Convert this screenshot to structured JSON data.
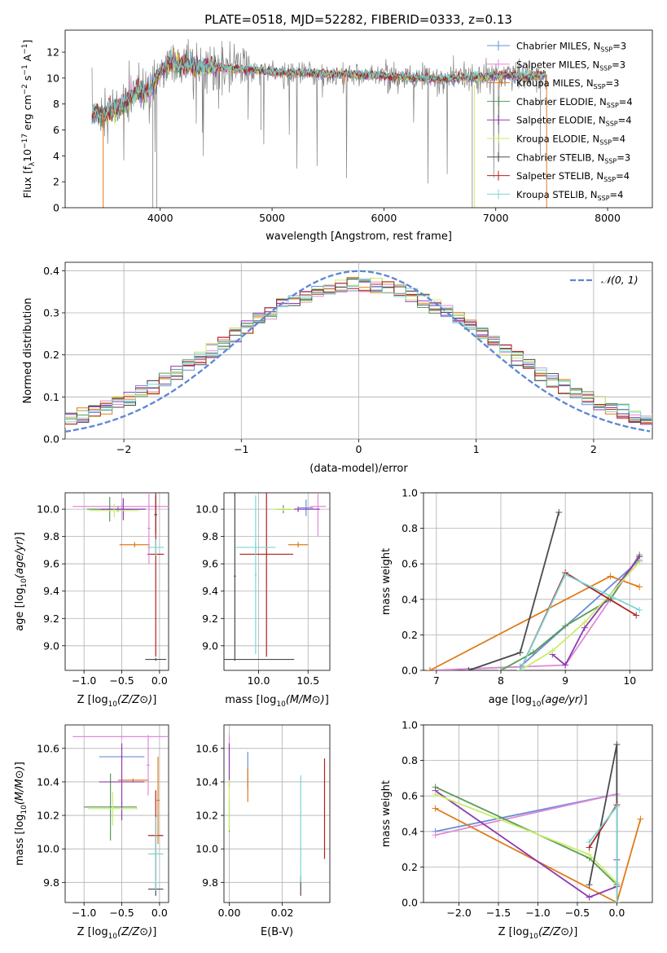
{
  "figure": {
    "title": "PLATE=0518, MJD=52282, FIBERID=0333, z=0.13"
  },
  "colors": {
    "chabrier_miles": "#6a8fd6",
    "salpeter_miles": "#e08ad8",
    "kroupa_miles": "#e07b1a",
    "chabrier_elodie": "#5a9a5a",
    "salpeter_elodie": "#8e3ab0",
    "kroupa_elodie": "#c8ee6a",
    "chabrier_stelib": "#4a4a4a",
    "salpeter_stelib": "#b22020",
    "kroupa_stelib": "#7ad6d6",
    "spectrum_data": "#808080",
    "normal_curve": "#5b86d6"
  },
  "chart_data": [
    {
      "id": "spectrum",
      "type": "line",
      "xlabel": "wavelength [Angstrom, rest frame]",
      "ylabel": "Flux [f_λ10^-17 erg cm^-2 s^-1 A^-1]",
      "xlim": [
        3150,
        8400
      ],
      "ylim": [
        0,
        13.7
      ],
      "xticks": [
        4000,
        5000,
        6000,
        7000,
        8000
      ],
      "yticks": [
        0,
        2,
        4,
        6,
        8,
        10,
        12
      ],
      "grid": false,
      "legend_position": "top-right",
      "legend": [
        {
          "label": "Chabrier MILES, N",
          "sub": "SSP",
          "suffix": "=3",
          "color_key": "chabrier_miles"
        },
        {
          "label": "Salpeter MILES, N",
          "sub": "SSP",
          "suffix": "=3",
          "color_key": "salpeter_miles"
        },
        {
          "label": "Kroupa MILES, N",
          "sub": "SSP",
          "suffix": "=3",
          "color_key": "kroupa_miles"
        },
        {
          "label": "Chabrier ELODIE, N",
          "sub": "SSP",
          "suffix": "=4",
          "color_key": "chabrier_elodie"
        },
        {
          "label": "Salpeter ELODIE, N",
          "sub": "SSP",
          "suffix": "=4",
          "color_key": "salpeter_elodie"
        },
        {
          "label": "Kroupa ELODIE, N",
          "sub": "SSP",
          "suffix": "=4",
          "color_key": "kroupa_elodie"
        },
        {
          "label": "Chabrier STELIB, N",
          "sub": "SSP",
          "suffix": "=3",
          "color_key": "chabrier_stelib"
        },
        {
          "label": "Salpeter STELIB, N",
          "sub": "SSP",
          "suffix": "=4",
          "color_key": "salpeter_stelib"
        },
        {
          "label": "Kroupa STELIB, N",
          "sub": "SSP",
          "suffix": "=4",
          "color_key": "kroupa_stelib"
        }
      ],
      "continuum": [
        [
          3390,
          7.3
        ],
        [
          3500,
          7.2
        ],
        [
          3600,
          7.6
        ],
        [
          3700,
          8.2
        ],
        [
          3800,
          9.0
        ],
        [
          3900,
          8.8
        ],
        [
          4000,
          10.5
        ],
        [
          4100,
          11.2
        ],
        [
          4200,
          11.0
        ],
        [
          4300,
          10.9
        ],
        [
          4500,
          10.8
        ],
        [
          4700,
          10.7
        ],
        [
          4900,
          10.6
        ],
        [
          5100,
          10.4
        ],
        [
          5300,
          10.4
        ],
        [
          5500,
          10.3
        ],
        [
          5700,
          10.3
        ],
        [
          5900,
          10.2
        ],
        [
          6100,
          10.1
        ],
        [
          6300,
          10.0
        ],
        [
          6500,
          9.9
        ],
        [
          6700,
          10.0
        ],
        [
          6900,
          10.1
        ],
        [
          7100,
          10.2
        ],
        [
          7300,
          10.1
        ],
        [
          7450,
          10.3
        ]
      ],
      "model_xrange": [
        3390,
        7450
      ],
      "data_xrange": [
        3390,
        7450
      ]
    },
    {
      "id": "residuals",
      "type": "line",
      "xlabel": "(data-model)/error",
      "ylabel": "Normed distribution",
      "xlim": [
        -2.5,
        2.5
      ],
      "ylim": [
        0,
        0.42
      ],
      "xticks": [
        -2,
        -1,
        0,
        1,
        2
      ],
      "yticks": [
        0.0,
        0.1,
        0.2,
        0.3,
        0.4
      ],
      "grid": true,
      "legend_position": "top-right",
      "normal_label": "𝒩(0, 1)",
      "bin_width": 0.1,
      "series_order": [
        "chabrier_miles",
        "salpeter_miles",
        "kroupa_miles",
        "chabrier_elodie",
        "salpeter_elodie",
        "kroupa_elodie",
        "chabrier_stelib",
        "salpeter_stelib",
        "kroupa_stelib"
      ]
    },
    {
      "id": "age_vs_Z",
      "type": "scatter",
      "xlabel": "Z [log10(Z/Z⊙)]",
      "ylabel": "age [log10(age/yr)]",
      "xlim": [
        -1.25,
        0.12
      ],
      "ylim": [
        8.82,
        10.12
      ],
      "xticks": [
        -1.0,
        -0.5,
        0.0
      ],
      "yticks": [
        9.0,
        9.2,
        9.4,
        9.6,
        9.8,
        10.0
      ],
      "grid": true,
      "points": [
        {
          "key": "chabrier_miles",
          "x": -0.55,
          "y": 10.0,
          "xerr": 0.35,
          "yerr": 0.02
        },
        {
          "key": "salpeter_miles",
          "x": -0.5,
          "y": 10.02,
          "xerr": 0.65,
          "yerr": 0.02
        },
        {
          "key": "kroupa_miles",
          "x": -0.33,
          "y": 9.74,
          "xerr": 0.2,
          "yerr": 0.02
        },
        {
          "key": "chabrier_elodie",
          "x": -0.66,
          "y": 10.0,
          "xerr": 0.3,
          "yerr": 0.09
        },
        {
          "key": "salpeter_elodie",
          "x": -0.48,
          "y": 10.0,
          "xerr": 0.3,
          "yerr": 0.08
        },
        {
          "key": "kroupa_elodie",
          "x": -0.6,
          "y": 9.99,
          "xerr": 0.33,
          "yerr": 0.05
        },
        {
          "key": "chabrier_stelib",
          "x": -0.05,
          "y": 9.96,
          "xerr": 0.02,
          "yerr": 0.14
        },
        {
          "key": "salpeter_stelib",
          "x": -0.05,
          "y": 9.67,
          "xerr": 0.11,
          "yerr": 0.75
        },
        {
          "key": "kroupa_stelib",
          "x": -0.05,
          "y": 9.72,
          "xerr": 0.11,
          "yerr": 0.06
        },
        {
          "key": "salpeter_miles",
          "x": -0.14,
          "y": 9.86,
          "xerr": 0.02,
          "yerr": 0.26
        },
        {
          "key": "chabrier_stelib",
          "x": -0.05,
          "y": 8.9,
          "xerr": 0.14,
          "yerr": 0.01
        }
      ]
    },
    {
      "id": "age_vs_mass",
      "type": "scatter",
      "xlabel": "mass [log10(M/M⊙)]",
      "ylabel": "",
      "xlim": [
        9.65,
        10.72
      ],
      "ylim": [
        8.82,
        10.12
      ],
      "xticks": [
        10.0,
        10.5
      ],
      "yticks": [
        9.0,
        9.2,
        9.4,
        9.6,
        9.8,
        10.0
      ],
      "grid": true,
      "points": [
        {
          "key": "chabrier_miles",
          "x": 10.48,
          "y": 10.01,
          "xerr": 0.07,
          "yerr": 0.06
        },
        {
          "key": "salpeter_miles",
          "x": 10.6,
          "y": 10.02,
          "xerr": 0.08,
          "yerr": 0.22
        },
        {
          "key": "kroupa_miles",
          "x": 10.4,
          "y": 9.74,
          "xerr": 0.1,
          "yerr": 0.02
        },
        {
          "key": "chabrier_elodie",
          "x": 10.25,
          "y": 10.0,
          "xerr": 0.06,
          "yerr": 0.03
        },
        {
          "key": "salpeter_elodie",
          "x": 10.4,
          "y": 10.0,
          "xerr": 0.22,
          "yerr": 0.02
        },
        {
          "key": "kroupa_elodie",
          "x": 10.25,
          "y": 10.0,
          "xerr": 0.11,
          "yerr": 0.01
        },
        {
          "key": "chabrier_stelib",
          "x": 9.76,
          "y": 10.12,
          "xerr": 0.01,
          "yerr": 0.02
        },
        {
          "key": "salpeter_stelib",
          "x": 10.08,
          "y": 9.67,
          "xerr": 0.27,
          "yerr": 0.75
        },
        {
          "key": "kroupa_stelib",
          "x": 9.97,
          "y": 9.72,
          "xerr": 0.2,
          "yerr": 0.04
        },
        {
          "key": "chabrier_stelib",
          "x": 9.76,
          "y": 8.9,
          "xerr": 0.6,
          "yerr": 0.01
        },
        {
          "key": "chabrier_stelib",
          "x": 9.76,
          "y": 9.51,
          "xerr": 0.01,
          "yerr": 0.6
        },
        {
          "key": "kroupa_stelib",
          "x": 9.97,
          "y": 9.52,
          "xerr": 0.01,
          "yerr": 0.58
        }
      ]
    },
    {
      "id": "massweight_vs_age",
      "type": "line",
      "xlabel": "age [log10(age/yr)]",
      "ylabel": "mass weight",
      "xlim": [
        6.8,
        10.35
      ],
      "ylim": [
        0,
        1.0
      ],
      "xticks": [
        7,
        8,
        9,
        10
      ],
      "yticks": [
        0.0,
        0.2,
        0.4,
        0.6,
        0.8,
        1.0
      ],
      "grid": true,
      "series": [
        {
          "key": "chabrier_miles",
          "x": [
            6.9,
            8.3,
            10.15
          ],
          "y": [
            0.0,
            0.02,
            0.62
          ]
        },
        {
          "key": "salpeter_miles",
          "x": [
            6.9,
            9.0,
            10.15
          ],
          "y": [
            0.0,
            0.03,
            0.64
          ]
        },
        {
          "key": "kroupa_miles",
          "x": [
            6.9,
            9.7,
            10.15
          ],
          "y": [
            0.0,
            0.53,
            0.47
          ]
        },
        {
          "key": "chabrier_elodie",
          "x": [
            8.0,
            8.5,
            9.0,
            9.7,
            10.15
          ],
          "y": [
            0.0,
            0.1,
            0.25,
            0.4,
            0.65
          ]
        },
        {
          "key": "salpeter_elodie",
          "x": [
            8.8,
            9.0,
            9.3,
            10.15
          ],
          "y": [
            0.09,
            0.03,
            0.24,
            0.64
          ]
        },
        {
          "key": "kroupa_elodie",
          "x": [
            8.3,
            8.8,
            9.3,
            10.15
          ],
          "y": [
            0.0,
            0.11,
            0.27,
            0.61
          ]
        },
        {
          "key": "chabrier_stelib",
          "x": [
            7.5,
            8.3,
            8.9
          ],
          "y": [
            0.0,
            0.1,
            0.89
          ]
        },
        {
          "key": "salpeter_stelib",
          "x": [
            8.3,
            9.0,
            10.1
          ],
          "y": [
            0.0,
            0.55,
            0.31
          ]
        },
        {
          "key": "kroupa_stelib",
          "x": [
            8.3,
            9.0,
            10.15
          ],
          "y": [
            0.0,
            0.54,
            0.34
          ]
        }
      ]
    },
    {
      "id": "mass_vs_Z",
      "type": "scatter",
      "xlabel": "Z [log10(Z/Z⊙)]",
      "ylabel": "mass [log10(M/M⊙)]",
      "xlim": [
        -1.25,
        0.12
      ],
      "ylim": [
        9.68,
        10.74
      ],
      "xticks": [
        -1.0,
        -0.5,
        0.0
      ],
      "yticks": [
        9.8,
        10.0,
        10.2,
        10.4,
        10.6
      ],
      "grid": true,
      "points": [
        {
          "key": "chabrier_miles",
          "x": -0.5,
          "y": 10.55,
          "xerr": 0.3,
          "yerr": 0.01
        },
        {
          "key": "salpeter_miles",
          "x": -0.5,
          "y": 10.67,
          "xerr": 0.65,
          "yerr": 0.01
        },
        {
          "key": "kroupa_miles",
          "x": -0.35,
          "y": 10.41,
          "xerr": 0.2,
          "yerr": 0.01
        },
        {
          "key": "chabrier_elodie",
          "x": -0.65,
          "y": 10.25,
          "xerr": 0.35,
          "yerr": 0.2
        },
        {
          "key": "salpeter_elodie",
          "x": -0.5,
          "y": 10.4,
          "xerr": 0.3,
          "yerr": 0.23
        },
        {
          "key": "kroupa_elodie",
          "x": -0.62,
          "y": 10.24,
          "xerr": 0.33,
          "yerr": 0.1
        },
        {
          "key": "chabrier_stelib",
          "x": -0.05,
          "y": 9.76,
          "xerr": 0.1,
          "yerr": 0.04
        },
        {
          "key": "salpeter_stelib",
          "x": -0.05,
          "y": 10.08,
          "xerr": 0.1,
          "yerr": 0.27
        },
        {
          "key": "kroupa_stelib",
          "x": -0.05,
          "y": 9.97,
          "xerr": 0.1,
          "yerr": 0.22
        },
        {
          "key": "salpeter_miles",
          "x": -0.15,
          "y": 10.5,
          "xerr": 0.02,
          "yerr": 0.18
        },
        {
          "key": "kroupa_miles",
          "x": -0.02,
          "y": 10.29,
          "xerr": 0.02,
          "yerr": 0.26
        }
      ]
    },
    {
      "id": "mass_vs_ebv",
      "type": "scatter",
      "xlabel": "E(B-V)",
      "ylabel": "",
      "xlim": [
        -0.002,
        0.038
      ],
      "ylim": [
        9.68,
        10.74
      ],
      "xticks": [
        0.0,
        0.02
      ],
      "yticks": [
        9.8,
        10.0,
        10.2,
        10.4,
        10.6
      ],
      "grid": true,
      "points": [
        {
          "key": "chabrier_miles",
          "x": 0.007,
          "y": 10.47,
          "xerr": 0,
          "yerr": 0.11
        },
        {
          "key": "salpeter_miles",
          "x": 0.0,
          "y": 10.6,
          "xerr": 0,
          "yerr": 0.08
        },
        {
          "key": "kroupa_miles",
          "x": 0.007,
          "y": 10.38,
          "xerr": 0,
          "yerr": 0.1
        },
        {
          "key": "chabrier_elodie",
          "x": 0.0,
          "y": 10.2,
          "xerr": 0,
          "yerr": 0.1
        },
        {
          "key": "salpeter_elodie",
          "x": 0.0,
          "y": 10.5,
          "xerr": 0,
          "yerr": 0.13
        },
        {
          "key": "kroupa_elodie",
          "x": 0.0,
          "y": 10.26,
          "xerr": 0,
          "yerr": 0.15
        },
        {
          "key": "chabrier_stelib",
          "x": 0.027,
          "y": 9.78,
          "xerr": 0,
          "yerr": 0.06
        },
        {
          "key": "salpeter_stelib",
          "x": 0.036,
          "y": 10.24,
          "xerr": 0,
          "yerr": 0.3
        },
        {
          "key": "kroupa_stelib",
          "x": 0.027,
          "y": 10.12,
          "xerr": 0,
          "yerr": 0.32
        }
      ]
    },
    {
      "id": "massweight_vs_Z",
      "type": "line",
      "xlabel": "Z [log10(Z/Z⊙)]",
      "ylabel": "mass weight",
      "xlim": [
        -2.45,
        0.45
      ],
      "ylim": [
        0,
        1.0
      ],
      "xticks": [
        -2.0,
        -1.5,
        -1.0,
        -0.5,
        0.0
      ],
      "yticks": [
        0.0,
        0.2,
        0.4,
        0.6,
        0.8,
        1.0
      ],
      "grid": true,
      "series": [
        {
          "key": "chabrier_miles",
          "x": [
            -2.3,
            0.0,
            0.0
          ],
          "y": [
            0.4,
            0.61,
            0.0
          ]
        },
        {
          "key": "salpeter_miles",
          "x": [
            -2.3,
            0.0,
            0.0
          ],
          "y": [
            0.38,
            0.61,
            0.0
          ]
        },
        {
          "key": "kroupa_miles",
          "x": [
            -2.3,
            0.0,
            0.3
          ],
          "y": [
            0.53,
            0.0,
            0.47
          ]
        },
        {
          "key": "chabrier_elodie",
          "x": [
            -2.3,
            -0.35,
            0.0,
            0.0
          ],
          "y": [
            0.65,
            0.25,
            0.1,
            0.0
          ]
        },
        {
          "key": "salpeter_elodie",
          "x": [
            -2.3,
            -0.35,
            0.0,
            0.0
          ],
          "y": [
            0.63,
            0.03,
            0.09,
            0.24
          ]
        },
        {
          "key": "kroupa_elodie",
          "x": [
            -2.3,
            -0.35,
            0.0,
            0.0
          ],
          "y": [
            0.61,
            0.27,
            0.11,
            0.0
          ]
        },
        {
          "key": "chabrier_stelib",
          "x": [
            -0.35,
            0.0,
            0.0
          ],
          "y": [
            0.1,
            0.89,
            0.0
          ]
        },
        {
          "key": "salpeter_stelib",
          "x": [
            -0.35,
            0.0,
            0.0
          ],
          "y": [
            0.31,
            0.55,
            0.0
          ]
        },
        {
          "key": "kroupa_stelib",
          "x": [
            -0.35,
            0.0,
            0.0
          ],
          "y": [
            0.34,
            0.54,
            0.0
          ]
        }
      ]
    }
  ]
}
